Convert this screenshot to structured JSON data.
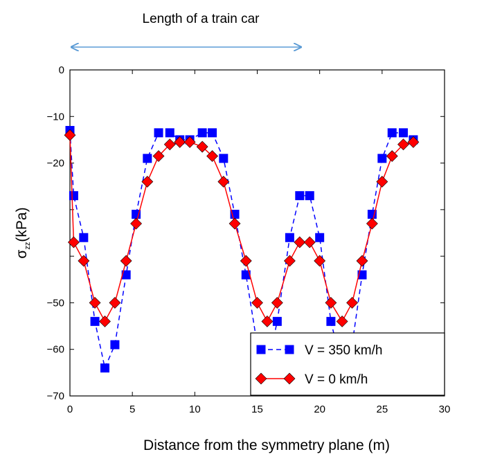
{
  "chart_data": {
    "type": "line",
    "title": "",
    "xlabel": "Distance from the symmetry plane (m)",
    "ylabel_symbol": "σ",
    "ylabel_subscript": "zz",
    "ylabel_unit": "(kPa)",
    "annotation": "Length of a train car",
    "annotation_arrow_x_range": [
      0,
      18.5
    ],
    "xlim": [
      0,
      30
    ],
    "ylim": [
      -70,
      0
    ],
    "xticks": [
      0,
      5,
      10,
      15,
      20,
      25,
      30
    ],
    "xtick_labels": [
      "0",
      "5",
      "10",
      "15",
      "20",
      "25",
      "30"
    ],
    "yticks": [
      0,
      -10,
      -20,
      -30,
      -40,
      -50,
      -60,
      -70
    ],
    "ytick_labels": [
      "0",
      "−10",
      "−20",
      "",
      "",
      "−50",
      "−60",
      "−70"
    ],
    "grid": false,
    "legend_position": "bottom-right",
    "series": [
      {
        "name": "V = 350 km/h",
        "color": "#0000ff",
        "line_style": "dashed",
        "marker": "square",
        "x": [
          0.0,
          0.3,
          1.1,
          2.0,
          2.8,
          3.6,
          4.5,
          5.3,
          6.2,
          7.1,
          8.0,
          8.8,
          9.6,
          10.6,
          11.4,
          12.3,
          13.2,
          14.1,
          15.0,
          15.8,
          16.6,
          17.6,
          18.4,
          19.2,
          20.0,
          20.9,
          21.8,
          22.6,
          23.4,
          24.2,
          25.0,
          25.8,
          26.7,
          27.5
        ],
        "y": [
          -13,
          -27,
          -36,
          -54,
          -64,
          -59,
          -44,
          -31,
          -19,
          -13.5,
          -13.5,
          -15,
          -15,
          -13.5,
          -13.5,
          -19,
          -31,
          -44,
          -59,
          -64,
          -54,
          -36,
          -27,
          -27,
          -36,
          -54,
          -64,
          -59,
          -44,
          -31,
          -19,
          -13.5,
          -13.5,
          -15
        ]
      },
      {
        "name": "V = 0 km/h",
        "color": "#ff0000",
        "line_style": "solid",
        "marker": "diamond",
        "x": [
          0.0,
          0.3,
          1.1,
          2.0,
          2.8,
          3.6,
          4.5,
          5.3,
          6.2,
          7.1,
          8.0,
          8.8,
          9.6,
          10.6,
          11.4,
          12.3,
          13.2,
          14.1,
          15.0,
          15.8,
          16.6,
          17.6,
          18.4,
          19.2,
          20.0,
          20.9,
          21.8,
          22.6,
          23.4,
          24.2,
          25.0,
          25.8,
          26.7,
          27.5
        ],
        "y": [
          -14,
          -37,
          -41,
          -50,
          -54,
          -50,
          -41,
          -33,
          -24,
          -18.5,
          -16,
          -15.5,
          -15.5,
          -16.5,
          -18.5,
          -24,
          -33,
          -41,
          -50,
          -54,
          -50,
          -41,
          -37,
          -37,
          -41,
          -50,
          -54,
          -50,
          -41,
          -33,
          -24,
          -18.5,
          -16,
          -15.5
        ]
      }
    ]
  }
}
